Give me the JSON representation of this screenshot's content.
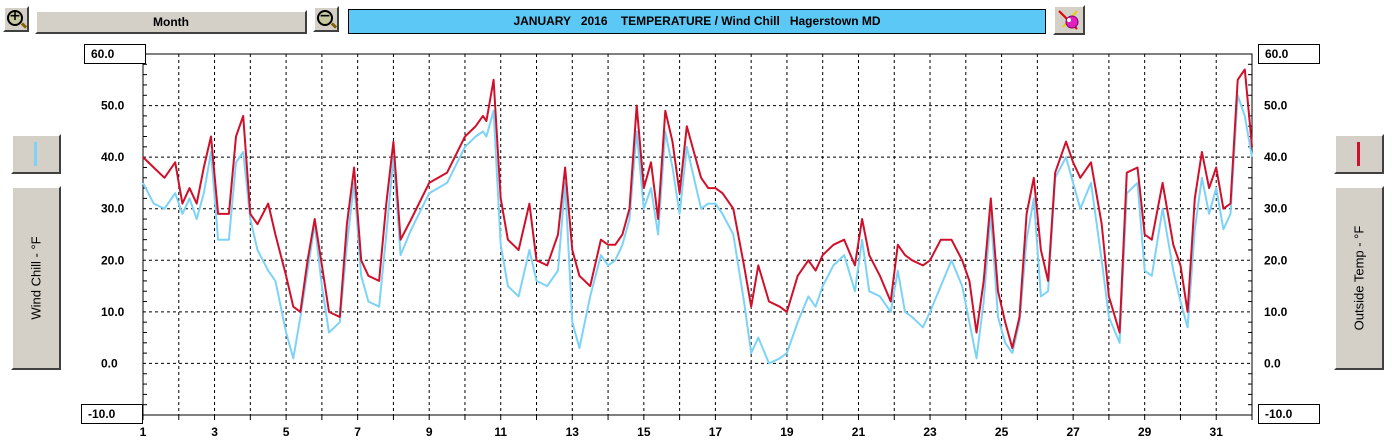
{
  "toolbar": {
    "zoom_in_icon": "zoom-in-icon",
    "zoom_out_icon": "zoom-out-icon",
    "period_label": "Month",
    "title": "JANUARY   2016    TEMPERATURE / Wind Chill   Hagerstown MD",
    "settings_icon": "paint-palette-icon"
  },
  "left_panel": {
    "legend_color": "#7dd3f7",
    "axis_label": "Wind Chill - °F"
  },
  "right_panel": {
    "legend_color": "#d0102a",
    "axis_label": "Outside Temp - °F"
  },
  "chart_data": {
    "type": "line",
    "title": "JANUARY   2016    TEMPERATURE / Wind Chill   Hagerstown MD",
    "xlabel": "",
    "ylabel_left": "Wind Chill - °F",
    "ylabel_right": "Outside Temp - °F",
    "x_tick_labels": [
      "1",
      "3",
      "5",
      "7",
      "9",
      "11",
      "13",
      "15",
      "17",
      "19",
      "21",
      "23",
      "25",
      "27",
      "29",
      "31"
    ],
    "y_tick_labels": [
      "60.0",
      "50.0",
      "40.0",
      "30.0",
      "20.0",
      "10.0",
      "0.0",
      "-10.0"
    ],
    "xlim": [
      1,
      32
    ],
    "ylim": [
      -10,
      60
    ],
    "grid": true,
    "series": [
      {
        "name": "Outside Temp",
        "axis": "right",
        "color": "#d0102a",
        "x": [
          1,
          1.3,
          1.6,
          1.9,
          2.1,
          2.3,
          2.5,
          2.7,
          2.9,
          3.1,
          3.4,
          3.6,
          3.8,
          4.0,
          4.2,
          4.5,
          4.7,
          5.0,
          5.2,
          5.4,
          5.6,
          5.8,
          6.0,
          6.2,
          6.5,
          6.7,
          6.9,
          7.1,
          7.3,
          7.6,
          7.8,
          8.0,
          8.2,
          8.5,
          9.0,
          9.5,
          10.0,
          10.3,
          10.5,
          10.6,
          10.8,
          11.0,
          11.2,
          11.5,
          11.8,
          12.0,
          12.3,
          12.6,
          12.8,
          13.0,
          13.2,
          13.5,
          13.8,
          14.0,
          14.2,
          14.4,
          14.6,
          14.8,
          15.0,
          15.2,
          15.4,
          15.6,
          15.8,
          16.0,
          16.2,
          16.4,
          16.6,
          16.8,
          17.0,
          17.2,
          17.5,
          17.8,
          18.0,
          18.2,
          18.5,
          18.8,
          19.0,
          19.3,
          19.6,
          19.8,
          20.0,
          20.3,
          20.6,
          20.9,
          21.1,
          21.3,
          21.6,
          21.9,
          22.1,
          22.3,
          22.5,
          22.8,
          23.0,
          23.3,
          23.6,
          23.9,
          24.1,
          24.3,
          24.5,
          24.7,
          24.9,
          25.1,
          25.3,
          25.5,
          25.7,
          25.9,
          26.1,
          26.3,
          26.5,
          26.8,
          27.0,
          27.2,
          27.5,
          27.8,
          28.0,
          28.3,
          28.5,
          28.8,
          29.0,
          29.2,
          29.5,
          29.8,
          30.0,
          30.2,
          30.4,
          30.6,
          30.8,
          31.0,
          31.2,
          31.4,
          31.6,
          31.8,
          32.0
        ],
        "values": [
          40,
          38,
          36,
          39,
          31,
          34,
          31,
          38,
          44,
          29,
          29,
          44,
          48,
          29,
          27,
          31,
          25,
          17,
          11,
          10,
          20,
          28,
          19,
          10,
          9,
          27,
          38,
          20,
          17,
          16,
          31,
          43,
          24,
          28,
          35,
          37,
          44,
          46,
          48,
          47,
          55,
          32,
          24,
          22,
          31,
          20,
          19,
          25,
          38,
          22,
          17,
          15,
          24,
          23,
          23,
          25,
          30,
          50,
          34,
          39,
          28,
          49,
          43,
          33,
          46,
          41,
          36,
          34,
          34,
          33,
          30,
          19,
          11,
          19,
          12,
          11,
          10,
          17,
          20,
          18,
          21,
          23,
          24,
          19,
          28,
          21,
          17,
          12,
          23,
          21,
          20,
          19,
          20,
          24,
          24,
          20,
          16,
          6,
          16,
          32,
          14,
          8,
          3,
          9,
          29,
          36,
          22,
          16,
          37,
          43,
          39,
          36,
          39,
          27,
          13,
          6,
          37,
          38,
          25,
          24,
          35,
          23,
          19,
          10,
          32,
          41,
          34,
          38,
          30,
          31,
          55,
          57,
          42
        ]
      },
      {
        "name": "Wind Chill",
        "axis": "left",
        "color": "#7dd3f7",
        "x": [
          1,
          1.3,
          1.6,
          1.9,
          2.1,
          2.3,
          2.5,
          2.7,
          2.9,
          3.1,
          3.4,
          3.6,
          3.8,
          4.0,
          4.2,
          4.5,
          4.7,
          5.0,
          5.2,
          5.4,
          5.6,
          5.8,
          6.0,
          6.2,
          6.5,
          6.7,
          6.9,
          7.1,
          7.3,
          7.6,
          7.8,
          8.0,
          8.2,
          8.5,
          9.0,
          9.5,
          10.0,
          10.3,
          10.5,
          10.6,
          10.8,
          11.0,
          11.2,
          11.5,
          11.8,
          12.0,
          12.3,
          12.6,
          12.8,
          13.0,
          13.2,
          13.5,
          13.8,
          14.0,
          14.2,
          14.4,
          14.6,
          14.8,
          15.0,
          15.2,
          15.4,
          15.6,
          15.8,
          16.0,
          16.2,
          16.4,
          16.6,
          16.8,
          17.0,
          17.2,
          17.5,
          17.8,
          18.0,
          18.2,
          18.5,
          18.8,
          19.0,
          19.3,
          19.6,
          19.8,
          20.0,
          20.3,
          20.6,
          20.9,
          21.1,
          21.3,
          21.6,
          21.9,
          22.1,
          22.3,
          22.5,
          22.8,
          23.0,
          23.3,
          23.6,
          23.9,
          24.1,
          24.3,
          24.5,
          24.7,
          24.9,
          25.1,
          25.3,
          25.5,
          25.7,
          25.9,
          26.1,
          26.3,
          26.5,
          26.8,
          27.0,
          27.2,
          27.5,
          27.8,
          28.0,
          28.3,
          28.5,
          28.8,
          29.0,
          29.2,
          29.5,
          29.8,
          30.0,
          30.2,
          30.4,
          30.6,
          30.8,
          31.0,
          31.2,
          31.4,
          31.6,
          31.8,
          32.0
        ],
        "values": [
          35,
          31,
          30,
          33,
          29,
          32,
          28,
          33,
          41,
          24,
          24,
          39,
          41,
          28,
          22,
          18,
          16,
          6,
          1,
          9,
          18,
          27,
          15,
          6,
          8,
          23,
          35,
          17,
          12,
          11,
          25,
          40,
          21,
          26,
          33,
          35,
          42,
          44,
          45,
          44,
          49,
          23,
          15,
          13,
          22,
          16,
          15,
          18,
          35,
          8,
          3,
          13,
          21,
          19,
          20,
          23,
          28,
          45,
          30,
          34,
          25,
          45,
          38,
          29,
          42,
          36,
          30,
          31,
          31,
          29,
          25,
          12,
          2,
          5,
          0,
          1,
          2,
          8,
          13,
          11,
          15,
          19,
          21,
          14,
          24,
          14,
          13,
          10,
          18,
          10,
          9,
          7,
          10,
          15,
          20,
          15,
          8,
          1,
          12,
          29,
          9,
          4,
          2,
          8,
          24,
          32,
          13,
          14,
          36,
          40,
          35,
          30,
          35,
          20,
          9,
          4,
          33,
          35,
          18,
          17,
          30,
          18,
          12,
          7,
          26,
          36,
          29,
          34,
          26,
          29,
          52,
          48,
          40
        ]
      }
    ]
  }
}
